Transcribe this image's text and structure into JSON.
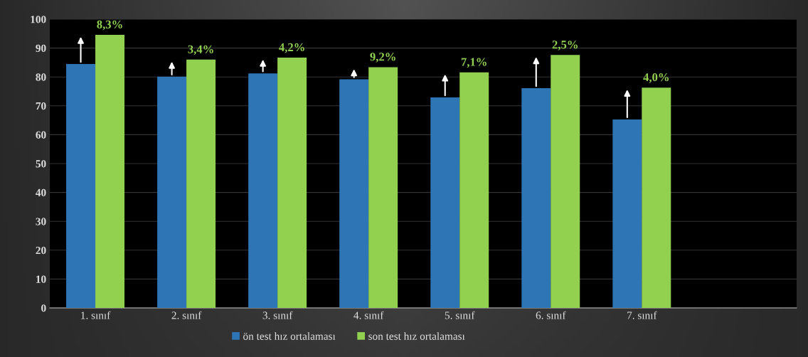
{
  "chart_data": {
    "type": "bar",
    "categories": [
      "1. sınıf",
      "2. sınıf",
      "3. sınıf",
      "4. sınıf",
      "5. sınıf",
      "6. sınıf",
      "7. sınıf"
    ],
    "series": [
      {
        "name": "ön test hız ortalaması",
        "color": "#2e75b6",
        "values": [
          84.5,
          80.1,
          81.2,
          79.2,
          72.9,
          76.1,
          65.3
        ]
      },
      {
        "name": "son test hız ortalaması",
        "color": "#92d050",
        "values": [
          94.6,
          86.0,
          86.7,
          83.4,
          81.6,
          87.6,
          76.3
        ]
      }
    ],
    "annotations": [
      {
        "text": "8,3%",
        "x": "1. sınıf",
        "y": 94.6
      },
      {
        "text": "3,4%",
        "x": "2. sınıf",
        "y": 86.0
      },
      {
        "text": "4,2%",
        "x": "3. sınıf",
        "y": 86.7
      },
      {
        "text": "9,2%",
        "x": "4. sınıf",
        "y": 83.4
      },
      {
        "text": "7,1%",
        "x": "5. sınıf",
        "y": 81.6
      },
      {
        "text": "2,5%",
        "x": "6. sınıf",
        "y": 87.6
      },
      {
        "text": "4,0%",
        "x": "7. sınıf",
        "y": 76.3
      }
    ],
    "ylim": [
      0,
      100
    ],
    "yticks": [
      0,
      10,
      20,
      30,
      40,
      50,
      60,
      70,
      80,
      90,
      100
    ],
    "grid": "y",
    "legend": "bottom"
  }
}
